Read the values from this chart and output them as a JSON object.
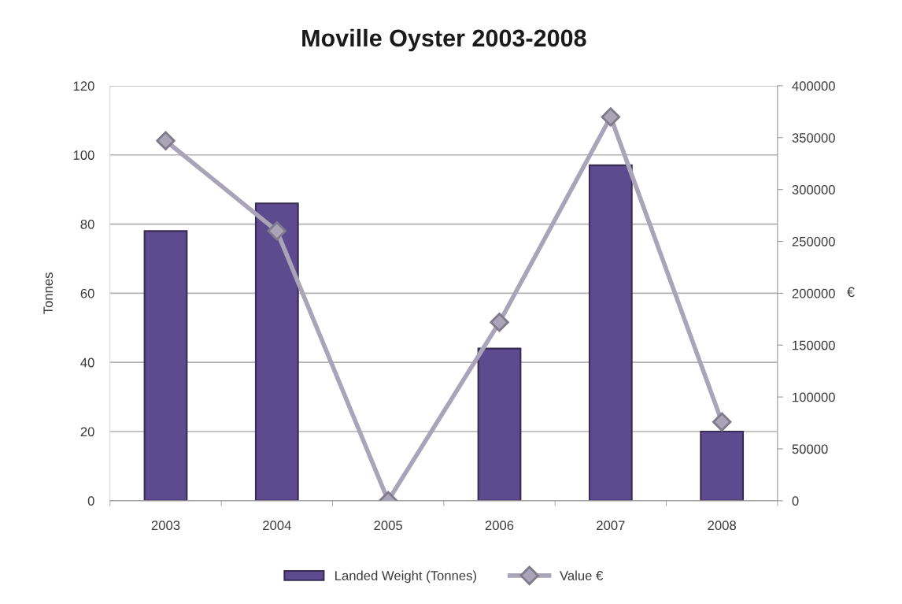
{
  "chart_data": {
    "type": "bar",
    "title": "Moville Oyster 2003-2008",
    "ylabel": "Tonnes",
    "y2label": "€",
    "categories": [
      "2003",
      "2004",
      "2005",
      "2006",
      "2007",
      "2008"
    ],
    "series": [
      {
        "name": "Landed Weight (Tonnes)",
        "color": "#5e4a8e",
        "values": [
          78,
          86,
          0,
          44,
          97,
          20
        ]
      },
      {
        "name": "Value €",
        "type": "line",
        "axis": "y2",
        "color": "#a9a4b8",
        "values": [
          347000,
          260000,
          0,
          172000,
          370000,
          76000
        ]
      }
    ],
    "ylim": [
      0,
      120
    ],
    "yticks": [
      0,
      20,
      40,
      60,
      80,
      100,
      120
    ],
    "y2lim": [
      0,
      400000
    ],
    "y2ticks": [
      0,
      50000,
      100000,
      150000,
      200000,
      250000,
      300000,
      350000,
      400000
    ],
    "grid": "y",
    "legend": "bottom",
    "marker": "diamond",
    "line_style": "solid"
  }
}
